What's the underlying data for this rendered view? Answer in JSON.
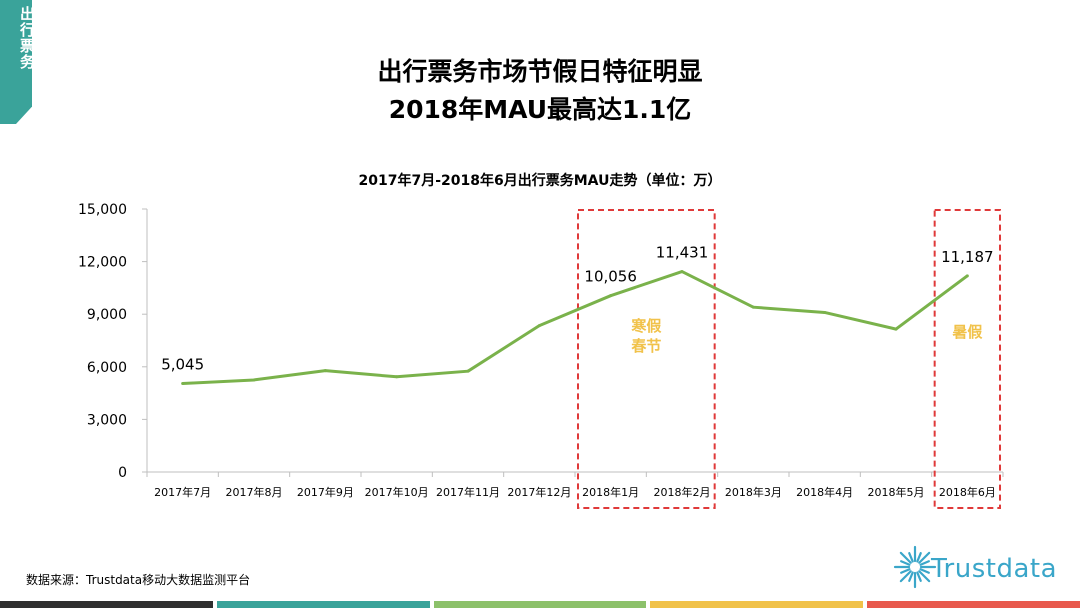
{
  "side_tab": {
    "label": "出行票务",
    "color": "#3aa39a"
  },
  "header": {
    "title_line1": "出行票务市场节假日特征明显",
    "title_line2": "2018年MAU最高达1.1亿"
  },
  "chart_data": {
    "type": "line",
    "title": "2017年7月-2018年6月出行票务MAU走势（单位：万）",
    "categories": [
      "2017年7月",
      "2017年8月",
      "2017年9月",
      "2017年10月",
      "2017年11月",
      "2017年12月",
      "2018年1月",
      "2018年2月",
      "2018年3月",
      "2018年4月",
      "2018年5月",
      "2018年6月"
    ],
    "series": [
      {
        "values": [
          5045,
          5250,
          5780,
          5430,
          5750,
          8350,
          10056,
          11431,
          9400,
          9100,
          8150,
          11187
        ],
        "color": "#7ab24b"
      }
    ],
    "data_labels": [
      {
        "index": 0,
        "text": "5,045"
      },
      {
        "index": 6,
        "text": "10,056"
      },
      {
        "index": 7,
        "text": "11,431"
      },
      {
        "index": 11,
        "text": "11,187"
      }
    ],
    "ylim": [
      0,
      15000
    ],
    "yticks": [
      "0",
      "3,000",
      "6,000",
      "9,000",
      "12,000",
      "15,000"
    ],
    "highlights": [
      {
        "from_index": 6,
        "to_index": 7,
        "label_line1": "寒假",
        "label_line2": "春节"
      },
      {
        "from_index": 11,
        "to_index": 11,
        "label_line1": "暑假",
        "label_line2": ""
      }
    ],
    "highlight_color": "#e03a3a",
    "highlight_label_color": "#f1c24a",
    "grid": false
  },
  "footer": {
    "source": "数据来源：Trustdata移动大数据监测平台",
    "logo_text": "Trustdata",
    "bar_colors": [
      "#2f2f2f",
      "#3aa39a",
      "#8cc16a",
      "#f1c24a",
      "#e8594d"
    ]
  }
}
